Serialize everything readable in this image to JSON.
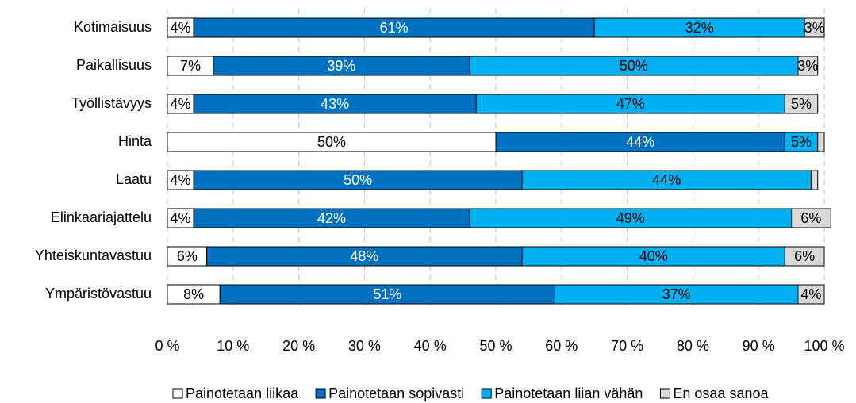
{
  "chart_data": {
    "type": "stacked-bar-horizontal",
    "categories": [
      "Kotimaisuus",
      "Paikallisuus",
      "Työllistävyys",
      "Hinta",
      "Laatu",
      "Elinkaariajattelu",
      "Yhteiskuntavastuu",
      "Ympäristövastuu"
    ],
    "series": [
      {
        "name": "Painotetaan liikaa",
        "color": "#ffffff",
        "values": [
          4,
          7,
          4,
          50,
          4,
          4,
          6,
          8
        ],
        "value_labels": [
          "4%",
          "7%",
          "4%",
          "50%",
          "4%",
          "4%",
          "6%",
          "8%"
        ]
      },
      {
        "name": "Painotetaan sopivasti",
        "color": "#0070c0",
        "values": [
          61,
          39,
          43,
          44,
          50,
          42,
          48,
          51
        ],
        "value_labels": [
          "61%",
          "39%",
          "43%",
          "44%",
          "50%",
          "42%",
          "48%",
          "51%"
        ]
      },
      {
        "name": "Painotetaan liian vähän",
        "color": "#00b0f0",
        "values": [
          32,
          50,
          47,
          5,
          44,
          49,
          40,
          37
        ],
        "value_labels": [
          "32%",
          "50%",
          "47%",
          "5%",
          "44%",
          "49%",
          "40%",
          "37%"
        ]
      },
      {
        "name": "En osaa sanoa",
        "color": "#d9d9d9",
        "values": [
          3,
          3,
          5,
          1,
          1,
          6,
          6,
          4
        ],
        "value_labels": [
          "3%",
          "3%",
          "5%",
          null,
          null,
          "6%",
          "6%",
          "4%"
        ]
      }
    ],
    "xlim": [
      0,
      100
    ],
    "xticks": [
      {
        "value": 0,
        "label": "0 %"
      },
      {
        "value": 10,
        "label": "10 %"
      },
      {
        "value": 20,
        "label": "20 %"
      },
      {
        "value": 30,
        "label": "30 %"
      },
      {
        "value": 40,
        "label": "40 %"
      },
      {
        "value": 50,
        "label": "50 %"
      },
      {
        "value": 60,
        "label": "60 %"
      },
      {
        "value": 70,
        "label": "70 %"
      },
      {
        "value": 80,
        "label": "80 %"
      },
      {
        "value": 90,
        "label": "90 %"
      },
      {
        "value": 100,
        "label": "100 %"
      }
    ],
    "grid": true,
    "legend": "bottom"
  }
}
